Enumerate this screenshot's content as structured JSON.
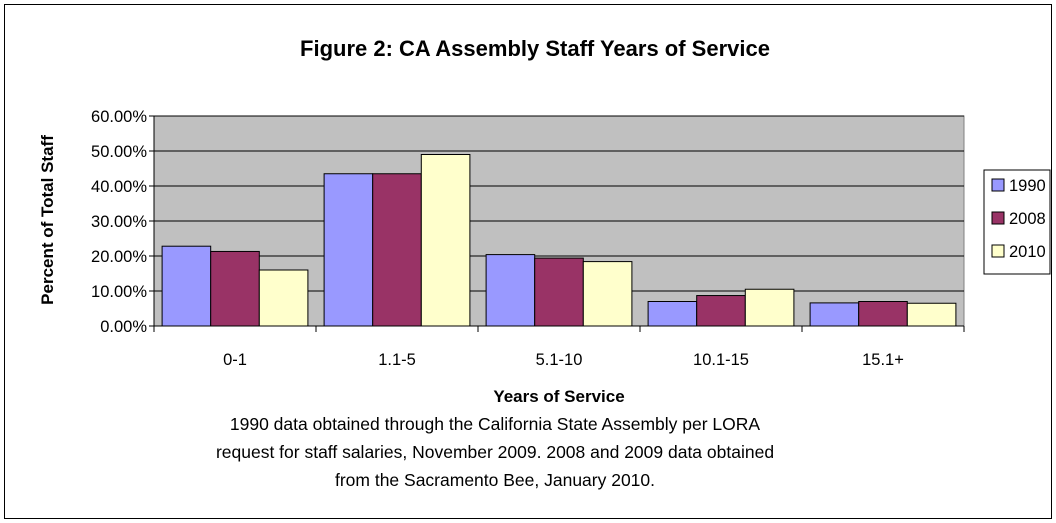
{
  "chart_data": {
    "type": "bar",
    "title": "Figure 2: CA Assembly Staff Years of Service",
    "xlabel": "Years of Service",
    "ylabel": "Percent of Total Staff",
    "categories": [
      "0-1",
      "1.1-5",
      "5.1-10",
      "10.1-15",
      "15.1+"
    ],
    "series": [
      {
        "name": "1990",
        "values": [
          0.228,
          0.435,
          0.204,
          0.07,
          0.066
        ],
        "color": "#9999ff"
      },
      {
        "name": "2008",
        "values": [
          0.213,
          0.435,
          0.194,
          0.087,
          0.07
        ],
        "color": "#993366"
      },
      {
        "name": "2010",
        "values": [
          0.16,
          0.49,
          0.184,
          0.105,
          0.065
        ],
        "color": "#ffffcc"
      }
    ],
    "ylim": [
      0,
      0.6
    ],
    "yticks": [
      "0.00%",
      "10.00%",
      "20.00%",
      "30.00%",
      "40.00%",
      "50.00%",
      "60.00%"
    ],
    "grid": true,
    "legend_position": "right",
    "plot_background": "#c0c0c0"
  },
  "caption": {
    "line1": "1990 data obtained through the California State Assembly per LORA",
    "line2": "request for staff salaries, November 2009. 2008 and 2009 data obtained",
    "line3": "from the Sacramento Bee, January 2010."
  }
}
